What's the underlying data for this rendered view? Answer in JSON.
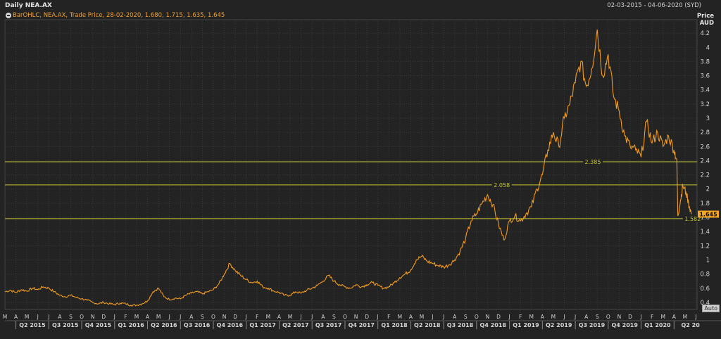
{
  "header": {
    "title": "Daily NEA.AX",
    "date_range": "02-03-2015 - 04-06-2020 (SYD)",
    "legend": "BarOHLC, NEA.AX, Trade Price, 28-02-2020, 1.680, 1.715, 1.635, 1.645",
    "price_label": "Price",
    "currency_label": "AUD",
    "auto_label": "Auto"
  },
  "colors": {
    "background": "#232323",
    "grid": "#3a3a3a",
    "price_line": "#f39c1f",
    "level_line": "#c8c832",
    "last_price_badge": "#f5a623"
  },
  "chart_data": {
    "type": "line",
    "ylim": [
      0.3,
      4.35
    ],
    "y_ticks": [
      0.4,
      0.6,
      0.8,
      1,
      1.2,
      1.4,
      1.6,
      1.8,
      2,
      2.2,
      2.4,
      2.6,
      2.8,
      3,
      3.2,
      3.4,
      3.6,
      3.8,
      4,
      4.2
    ],
    "y_tick_labels": [
      "0.4",
      "0.6",
      "0.8",
      "1",
      "1.2",
      "1.4",
      "1.6",
      "1.8",
      "2",
      "2.2",
      "2.4",
      "2.6",
      "2.8",
      "3",
      "3.2",
      "3.4",
      "3.6",
      "3.8",
      "4",
      "4.2"
    ],
    "month_labels": [
      "M",
      "A",
      "M",
      "J",
      "J",
      "A",
      "S",
      "O",
      "N",
      "D",
      "J",
      "F",
      "M",
      "A",
      "M",
      "J",
      "J",
      "A",
      "S",
      "O",
      "N",
      "D",
      "J",
      "F",
      "M",
      "A",
      "M",
      "J",
      "J",
      "A",
      "S",
      "O",
      "N",
      "D",
      "J",
      "F",
      "M",
      "A",
      "M",
      "J",
      "J",
      "A",
      "S",
      "O",
      "N",
      "D",
      "J",
      "F",
      "M",
      "A",
      "M",
      "J",
      "J",
      "A",
      "S",
      "O",
      "N",
      "D",
      "J",
      "F",
      "M",
      "A",
      "M",
      "J"
    ],
    "quarter_labels": [
      "Q2 2015",
      "Q3 2015",
      "Q4 2015",
      "Q1 2016",
      "Q2 2016",
      "Q3 2016",
      "Q4 2016",
      "Q1 2017",
      "Q2 2017",
      "Q3 2017",
      "Q4 2017",
      "Q1 2018",
      "Q2 2018",
      "Q3 2018",
      "Q4 2018",
      "Q1 2019",
      "Q2 2019",
      "Q3 2019",
      "Q4 2019",
      "Q1 2020",
      "Q2 20"
    ],
    "x_start_month_index": 0,
    "x_end_month_index": 63.1,
    "series": [
      {
        "points": [
          [
            0.0,
            0.55
          ],
          [
            0.5,
            0.57
          ],
          [
            1.0,
            0.54
          ],
          [
            1.5,
            0.58
          ],
          [
            2.0,
            0.56
          ],
          [
            2.5,
            0.6
          ],
          [
            3.0,
            0.58
          ],
          [
            3.5,
            0.62
          ],
          [
            4.0,
            0.6
          ],
          [
            4.5,
            0.55
          ],
          [
            5.0,
            0.5
          ],
          [
            5.5,
            0.48
          ],
          [
            6.0,
            0.5
          ],
          [
            6.5,
            0.47
          ],
          [
            7.0,
            0.45
          ],
          [
            7.5,
            0.43
          ],
          [
            8.0,
            0.4
          ],
          [
            8.5,
            0.38
          ],
          [
            9.0,
            0.4
          ],
          [
            9.5,
            0.38
          ],
          [
            10.0,
            0.37
          ],
          [
            10.5,
            0.39
          ],
          [
            11.0,
            0.38
          ],
          [
            11.5,
            0.36
          ],
          [
            12.0,
            0.36
          ],
          [
            12.5,
            0.38
          ],
          [
            13.0,
            0.42
          ],
          [
            13.5,
            0.55
          ],
          [
            14.0,
            0.6
          ],
          [
            14.5,
            0.48
          ],
          [
            15.0,
            0.44
          ],
          [
            15.5,
            0.46
          ],
          [
            16.0,
            0.45
          ],
          [
            16.5,
            0.5
          ],
          [
            17.0,
            0.53
          ],
          [
            17.5,
            0.55
          ],
          [
            18.0,
            0.52
          ],
          [
            18.5,
            0.55
          ],
          [
            19.0,
            0.58
          ],
          [
            19.5,
            0.66
          ],
          [
            20.0,
            0.8
          ],
          [
            20.5,
            0.95
          ],
          [
            21.0,
            0.85
          ],
          [
            21.5,
            0.78
          ],
          [
            22.0,
            0.72
          ],
          [
            22.5,
            0.68
          ],
          [
            23.0,
            0.7
          ],
          [
            23.5,
            0.62
          ],
          [
            24.0,
            0.6
          ],
          [
            24.5,
            0.56
          ],
          [
            25.0,
            0.54
          ],
          [
            25.5,
            0.5
          ],
          [
            26.0,
            0.5
          ],
          [
            26.5,
            0.55
          ],
          [
            27.0,
            0.53
          ],
          [
            27.5,
            0.57
          ],
          [
            28.0,
            0.6
          ],
          [
            28.5,
            0.64
          ],
          [
            29.0,
            0.7
          ],
          [
            29.5,
            0.78
          ],
          [
            30.0,
            0.7
          ],
          [
            30.5,
            0.65
          ],
          [
            31.0,
            0.62
          ],
          [
            31.5,
            0.6
          ],
          [
            32.0,
            0.65
          ],
          [
            32.5,
            0.62
          ],
          [
            33.0,
            0.65
          ],
          [
            33.5,
            0.68
          ],
          [
            34.0,
            0.64
          ],
          [
            34.5,
            0.6
          ],
          [
            35.0,
            0.62
          ],
          [
            35.5,
            0.68
          ],
          [
            36.0,
            0.75
          ],
          [
            36.5,
            0.8
          ],
          [
            37.0,
            0.86
          ],
          [
            37.5,
            1.0
          ],
          [
            38.0,
            1.05
          ],
          [
            38.5,
            0.98
          ],
          [
            39.0,
            0.95
          ],
          [
            39.5,
            0.92
          ],
          [
            40.0,
            0.9
          ],
          [
            40.5,
            0.93
          ],
          [
            41.0,
            1.0
          ],
          [
            41.5,
            1.12
          ],
          [
            42.0,
            1.3
          ],
          [
            42.5,
            1.55
          ],
          [
            43.0,
            1.65
          ],
          [
            43.5,
            1.8
          ],
          [
            44.0,
            1.92
          ],
          [
            44.5,
            1.78
          ],
          [
            45.0,
            1.5
          ],
          [
            45.5,
            1.28
          ],
          [
            46.0,
            1.55
          ],
          [
            46.5,
            1.62
          ],
          [
            47.0,
            1.55
          ],
          [
            47.5,
            1.65
          ],
          [
            48.0,
            1.75
          ],
          [
            48.5,
            2.0
          ],
          [
            49.0,
            2.2
          ],
          [
            49.5,
            2.55
          ],
          [
            50.0,
            2.8
          ],
          [
            50.5,
            2.6
          ],
          [
            51.0,
            3.0
          ],
          [
            51.5,
            3.2
          ],
          [
            52.0,
            3.5
          ],
          [
            52.5,
            3.8
          ],
          [
            53.0,
            3.45
          ],
          [
            53.5,
            3.7
          ],
          [
            54.0,
            4.25
          ],
          [
            54.5,
            3.6
          ],
          [
            55.0,
            3.9
          ],
          [
            55.5,
            3.3
          ],
          [
            56.0,
            3.1
          ],
          [
            56.5,
            2.75
          ],
          [
            57.0,
            2.6
          ],
          [
            57.5,
            2.55
          ],
          [
            58.0,
            2.45
          ],
          [
            58.5,
            2.95
          ],
          [
            59.0,
            2.65
          ],
          [
            59.5,
            2.8
          ],
          [
            60.0,
            2.6
          ],
          [
            60.5,
            2.75
          ],
          [
            61.0,
            2.55
          ],
          [
            61.25,
            2.42
          ],
          [
            61.35,
            1.62
          ],
          [
            61.6,
            1.85
          ],
          [
            61.8,
            2.05
          ],
          [
            62.1,
            1.95
          ],
          [
            62.4,
            1.75
          ],
          [
            62.6,
            1.645
          ]
        ]
      }
    ],
    "levels": [
      {
        "value": 2.385,
        "label": "2.385",
        "label_month": 53.6
      },
      {
        "value": 2.058,
        "label": "2.058",
        "label_month": 45.3
      },
      {
        "value": 1.582,
        "label": "1.582",
        "label_month": 62.7
      }
    ],
    "last_price": {
      "value": 1.645,
      "label": "1.645"
    }
  }
}
